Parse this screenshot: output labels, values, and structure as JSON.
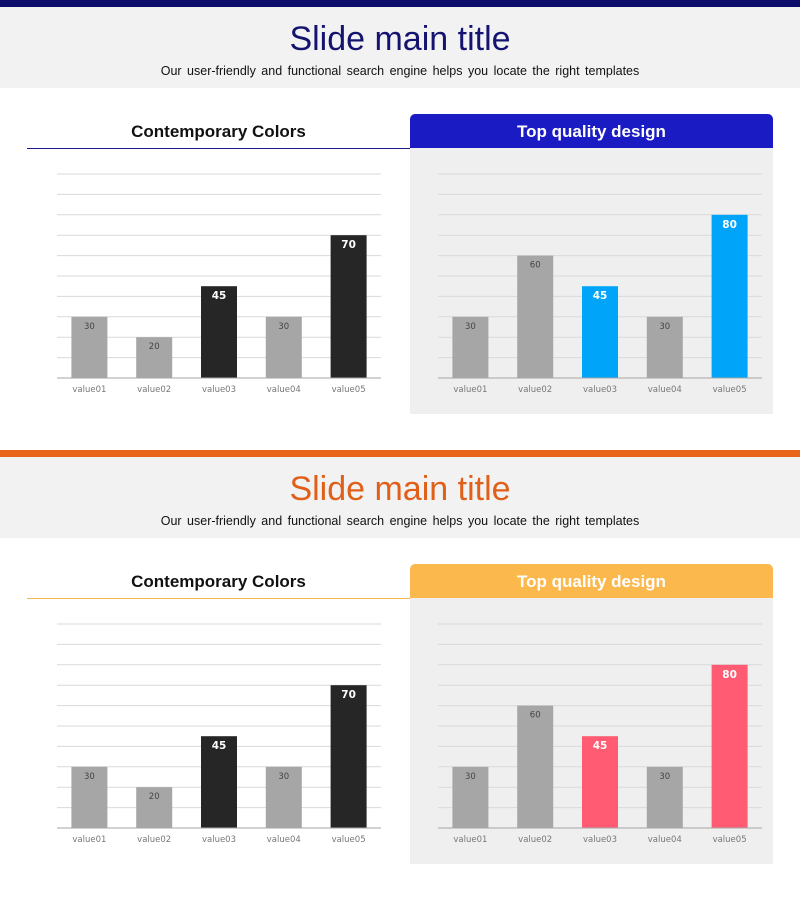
{
  "slides": [
    {
      "accent": "#0d0d6b",
      "title_color": "#141470",
      "line_color": "#1a1a8c",
      "title": "Slide main title",
      "subtitle": "Our user-friendly and functional search engine helps you locate the right templates",
      "left_heading": "Contemporary Colors",
      "right_heading": "Top quality design",
      "right_header_color": "#1b1bc3"
    },
    {
      "accent": "#e8641b",
      "title_color": "#e0601a",
      "line_color": "#f5b84a",
      "title": "Slide main title",
      "subtitle": "Our user-friendly and functional search engine helps you locate the right templates",
      "left_heading": "Contemporary Colors",
      "right_heading": "Top quality design",
      "right_header_color": "#fbb84d"
    }
  ],
  "chart_data": [
    {
      "type": "bar",
      "title": "Contemporary Colors",
      "categories": [
        "value01",
        "value02",
        "value03",
        "value04",
        "value05"
      ],
      "values": [
        30,
        20,
        45,
        30,
        70
      ],
      "colors": [
        "#a6a6a6",
        "#a6a6a6",
        "#262626",
        "#a6a6a6",
        "#262626"
      ],
      "label_colors": [
        "#444444",
        "#444444",
        "#ffffff",
        "#444444",
        "#ffffff"
      ],
      "ylim": [
        0,
        100
      ],
      "grid": true
    },
    {
      "type": "bar",
      "title": "Top quality design",
      "categories": [
        "value01",
        "value02",
        "value03",
        "value04",
        "value05"
      ],
      "values": [
        30,
        60,
        45,
        30,
        80
      ],
      "colors": [
        "#a6a6a6",
        "#a6a6a6",
        "#00a5fa",
        "#a6a6a6",
        "#00a5fa"
      ],
      "label_colors": [
        "#444444",
        "#444444",
        "#ffffff",
        "#444444",
        "#ffffff"
      ],
      "ylim": [
        0,
        100
      ],
      "grid": true
    },
    {
      "type": "bar",
      "title": "Contemporary Colors",
      "categories": [
        "value01",
        "value02",
        "value03",
        "value04",
        "value05"
      ],
      "values": [
        30,
        20,
        45,
        30,
        70
      ],
      "colors": [
        "#a6a6a6",
        "#a6a6a6",
        "#262626",
        "#a6a6a6",
        "#262626"
      ],
      "label_colors": [
        "#444444",
        "#444444",
        "#ffffff",
        "#444444",
        "#ffffff"
      ],
      "ylim": [
        0,
        100
      ],
      "grid": true
    },
    {
      "type": "bar",
      "title": "Top quality design",
      "categories": [
        "value01",
        "value02",
        "value03",
        "value04",
        "value05"
      ],
      "values": [
        30,
        60,
        45,
        30,
        80
      ],
      "colors": [
        "#a6a6a6",
        "#a6a6a6",
        "#ff5c74",
        "#a6a6a6",
        "#ff5c74"
      ],
      "label_colors": [
        "#444444",
        "#444444",
        "#ffffff",
        "#444444",
        "#ffffff"
      ],
      "ylim": [
        0,
        100
      ],
      "grid": true
    }
  ]
}
